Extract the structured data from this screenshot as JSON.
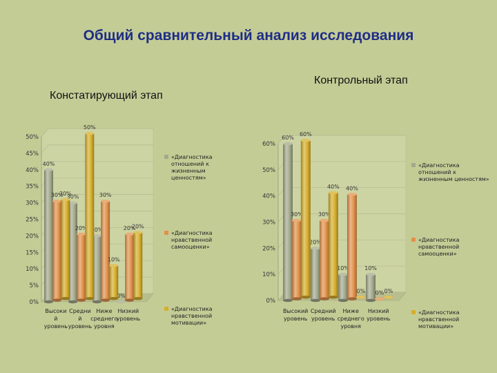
{
  "title": "Общий сравнительный анализ исследования",
  "left_subtitle": "Констатирующий этап",
  "right_subtitle": "Контрольный этап",
  "colors": {
    "gray": "#a3a98b",
    "orange": "#e2914a",
    "gold": "#d6ae2a"
  },
  "chart_data": [
    {
      "type": "bar",
      "title": "Констатирующий этап",
      "categories": [
        "Высокий уровень",
        "Средний уровень",
        "Ниже среднего уровня",
        "Низкий уровень"
      ],
      "category_labels": [
        [
          "Высоки",
          "й",
          "уровень"
        ],
        [
          "Средни",
          "й",
          "уровень"
        ],
        [
          "Ниже",
          "среднего",
          "уровня"
        ],
        [
          "Низкий",
          "уровень"
        ]
      ],
      "ylim": [
        0,
        50
      ],
      "ytick_labels": [
        "0%",
        "5%",
        "10%",
        "15%",
        "20%",
        "25%",
        "30%",
        "35%",
        "40%",
        "45%",
        "50%"
      ],
      "series": [
        {
          "name": "«Диагностика отношений к жизненным ценностям»",
          "legend_lines": [
            "«Диагностика",
            "отношений к",
            "жизненным",
            "ценностям»"
          ],
          "color": "gray",
          "values": [
            40,
            30,
            20,
            0
          ]
        },
        {
          "name": "«Диагностика нравственной самооценки»",
          "legend_lines": [
            "«Диагностика",
            "нравственной",
            "самооценки»"
          ],
          "color": "orange",
          "values": [
            30,
            20,
            30,
            20
          ]
        },
        {
          "name": "«Диагностика нравственной мотивации»",
          "legend_lines": [
            "«Диагностика",
            "нравственной",
            "мотивации»"
          ],
          "color": "gold",
          "values": [
            30,
            50,
            10,
            20
          ]
        }
      ],
      "data_labels": [
        [
          "40%",
          "30%",
          "20%",
          "0%"
        ],
        [
          "30%",
          "20%",
          "30%",
          "20%"
        ],
        [
          "30%",
          "50%",
          "10%",
          "20%"
        ]
      ]
    },
    {
      "type": "bar",
      "title": "Контрольный этап",
      "categories": [
        "Высокий уровень",
        "Средний уровень",
        "Ниже среднего уровня",
        "Низкий уровень"
      ],
      "category_labels": [
        [
          "Высокий",
          "уровень"
        ],
        [
          "Средний",
          "уровень"
        ],
        [
          "Ниже",
          "среднего",
          "уровня"
        ],
        [
          "Низкий",
          "уровень"
        ]
      ],
      "ylim": [
        0,
        60
      ],
      "ytick_labels": [
        "0%",
        "10%",
        "20%",
        "30%",
        "40%",
        "50%",
        "60%"
      ],
      "series": [
        {
          "name": "«Диагностика отношений к жизненным ценностям»",
          "legend_lines": [
            "«Диагностика",
            "отношений к",
            "жизненным ценностям»"
          ],
          "color": "gray",
          "values": [
            60,
            20,
            10,
            10
          ]
        },
        {
          "name": "«Диагностика нравственной самооценки»",
          "legend_lines": [
            "«Диагностика",
            "нравственной",
            "самооценки»"
          ],
          "color": "orange",
          "values": [
            30,
            30,
            40,
            0
          ]
        },
        {
          "name": "«Диагностика нравственной мотивации»",
          "legend_lines": [
            "«Диагностика",
            "нравственной",
            "мотивации»"
          ],
          "color": "gold",
          "values": [
            60,
            40,
            0,
            0
          ]
        }
      ],
      "data_labels": [
        [
          "60%",
          "20%",
          "10%",
          "10%"
        ],
        [
          "30%",
          "30%",
          "40%",
          "0%"
        ],
        [
          "60%",
          "40%",
          "0%",
          "0%"
        ]
      ]
    }
  ]
}
